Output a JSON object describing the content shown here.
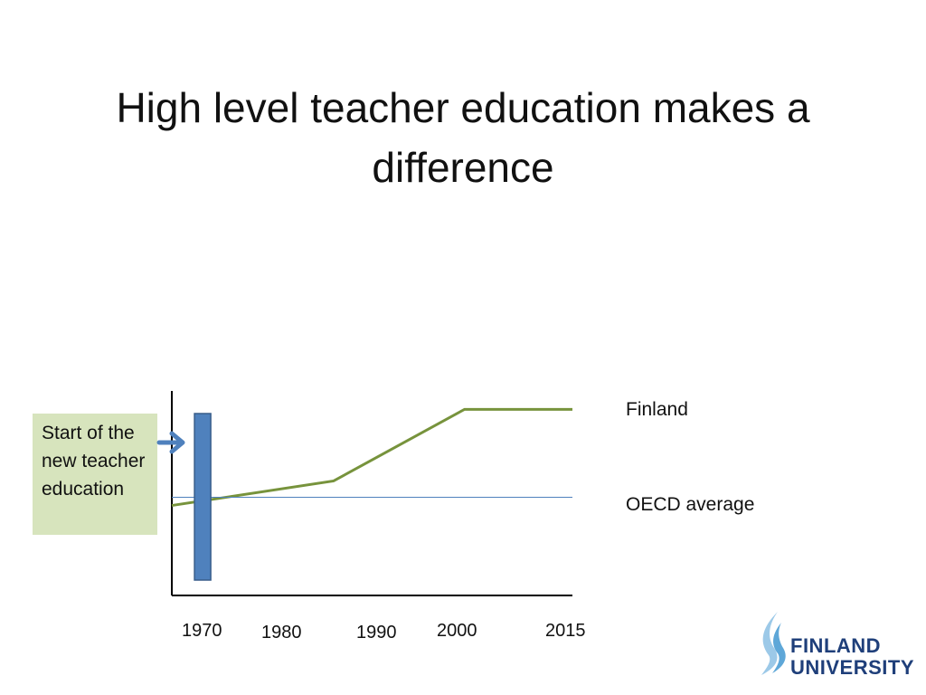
{
  "slide": {
    "title": "High level teacher education makes a difference"
  },
  "callout": {
    "text": "Start of the new teacher education"
  },
  "logo": {
    "line1": "FINLAND",
    "line2": "UNIVERSITY"
  },
  "colors": {
    "finland_line": "#77933c",
    "oecd_line": "#4f81bd",
    "marker": "#4f81bd",
    "callout_bg": "#d7e4bd",
    "logo_text": "#1f3f7a"
  },
  "chart_data": {
    "type": "line",
    "title": "",
    "xlabel": "",
    "ylabel": "",
    "x_ticks": [
      "1970",
      "1980",
      "1990",
      "2000",
      "2015"
    ],
    "xlim": [
      1966,
      2018
    ],
    "ylim": [
      0,
      10
    ],
    "grid": false,
    "legend": "direct labels at right",
    "series": [
      {
        "name": "Finland",
        "x": [
          1966,
          1987,
          2004,
          2018
        ],
        "y": [
          4.4,
          5.6,
          9.1,
          9.1
        ]
      },
      {
        "name": "OECD average",
        "x": [
          1966,
          2018
        ],
        "y": [
          4.8,
          4.8
        ]
      }
    ],
    "annotations": [
      {
        "type": "marker-bar",
        "x": 1970,
        "label": "Start of the new teacher education"
      }
    ]
  }
}
